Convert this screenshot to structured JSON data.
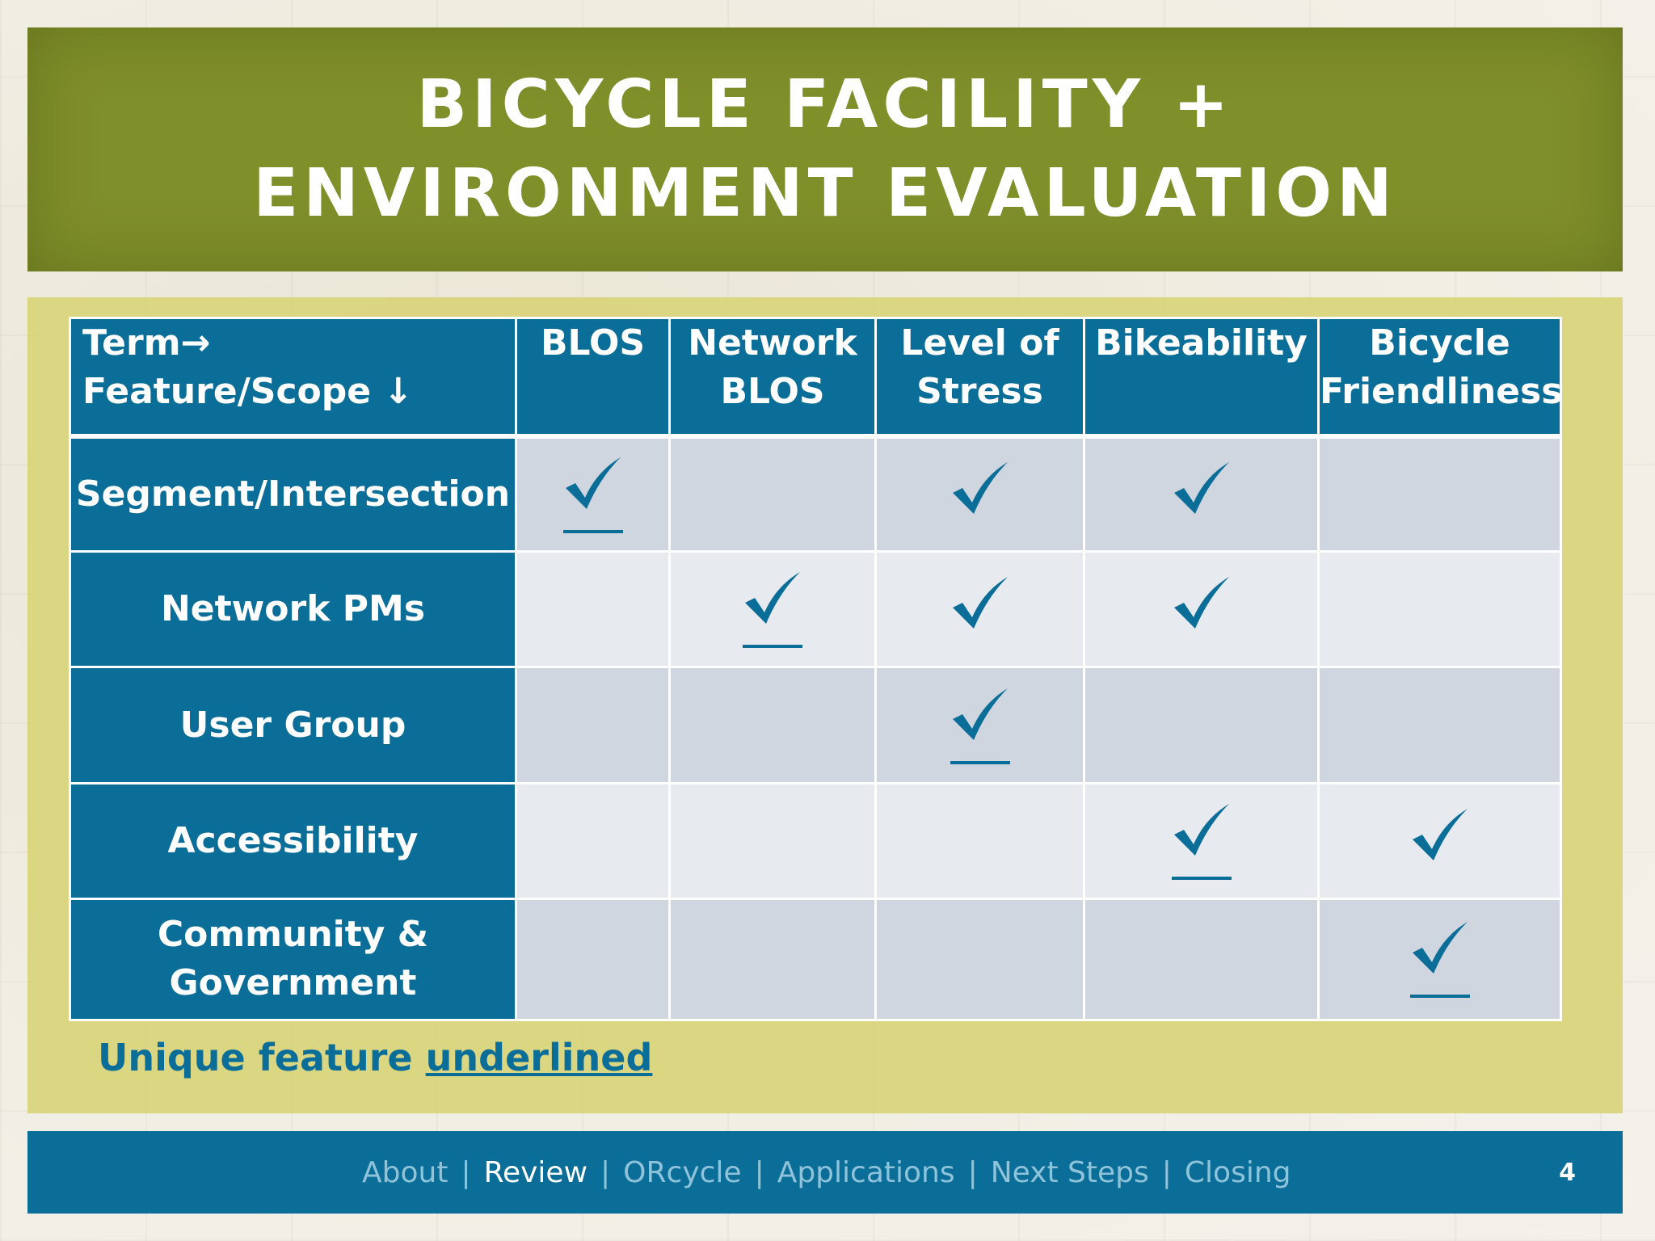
{
  "slide": {
    "title": "BICYCLE FACILITY + ENVIRONMENT EVALUATION",
    "note_prefix": "Unique feature ",
    "note_underlined": "underlined",
    "page_number": "4"
  },
  "table": {
    "corner_line1": "Term→",
    "corner_line2": "Feature/Scope ↓",
    "columns": [
      {
        "line1": "BLOS",
        "line2": ""
      },
      {
        "line1": "Network",
        "line2": "BLOS"
      },
      {
        "line1": "Level of",
        "line2": "Stress"
      },
      {
        "line1": "Bikeability",
        "line2": ""
      },
      {
        "line1": "Bicycle",
        "line2": "Friendliness"
      }
    ],
    "rows": [
      {
        "line1": "Segment/Intersection",
        "line2": "",
        "checks": [
          true,
          false,
          true,
          true,
          false
        ],
        "unique": [
          true,
          false,
          false,
          false,
          false
        ]
      },
      {
        "line1": "Network PMs",
        "line2": "",
        "checks": [
          false,
          true,
          true,
          true,
          false
        ],
        "unique": [
          false,
          true,
          false,
          false,
          false
        ]
      },
      {
        "line1": "User Group",
        "line2": "",
        "checks": [
          false,
          false,
          true,
          false,
          false
        ],
        "unique": [
          false,
          false,
          true,
          false,
          false
        ]
      },
      {
        "line1": "Accessibility",
        "line2": "",
        "checks": [
          false,
          false,
          false,
          true,
          true
        ],
        "unique": [
          false,
          false,
          false,
          true,
          false
        ]
      },
      {
        "line1": "Community &",
        "line2": "Government",
        "checks": [
          false,
          false,
          false,
          false,
          true
        ],
        "unique": [
          false,
          false,
          false,
          false,
          true
        ]
      }
    ]
  },
  "footer": {
    "nav": [
      {
        "label": "About",
        "active": false
      },
      {
        "label": "Review",
        "active": true
      },
      {
        "label": "ORcycle",
        "active": false
      },
      {
        "label": "Applications",
        "active": false
      },
      {
        "label": "Next Steps",
        "active": false
      },
      {
        "label": "Closing",
        "active": false
      }
    ]
  },
  "colors": {
    "title_band": "#7f8f2a",
    "header_blue": "#0b6e98",
    "panel_yellow": "#d9d47a"
  }
}
